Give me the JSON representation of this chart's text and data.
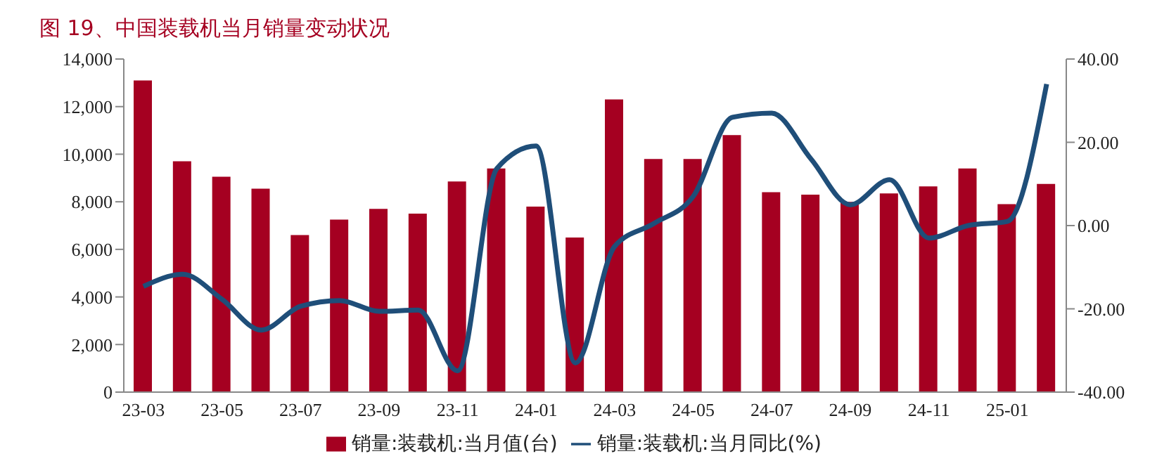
{
  "chart_data": {
    "type": "bar",
    "title": "图 19、中国装载机当月销量变动状况",
    "categories": [
      "23-03",
      null,
      "23-05",
      null,
      "23-07",
      null,
      "23-09",
      null,
      "23-11",
      null,
      "24-01",
      null,
      "24-03",
      null,
      "24-05",
      null,
      "24-07",
      null,
      "24-09",
      null,
      "24-11",
      null,
      "25-01",
      null
    ],
    "series": [
      {
        "name": "销量:装载机:当月值(台)",
        "color": "#a50021",
        "values": [
          13100,
          9700,
          9050,
          8550,
          6600,
          7250,
          7700,
          7500,
          8850,
          9400,
          7800,
          6500,
          12300,
          9800,
          9800,
          10800,
          8400,
          8300,
          8000,
          8350,
          8650,
          9400,
          7900,
          8750
        ]
      },
      {
        "name": "销量:装载机:当月同比(%)",
        "type": "line",
        "axis": "y2",
        "color": "#1f4e79",
        "values": [
          -14.6,
          -11.7,
          -17.7,
          -25.1,
          -19.4,
          -18,
          -20.6,
          -20.3,
          -34.9,
          13.7,
          19.1,
          -33,
          -5,
          0.5,
          7,
          26,
          27,
          16,
          5,
          11,
          -3,
          0,
          1,
          34
        ]
      }
    ],
    "ylim": [
      0,
      14000
    ],
    "yticks": [
      {
        "value": 0,
        "label": "0"
      },
      {
        "value": 2000,
        "label": "2,000"
      },
      {
        "value": 4000,
        "label": "4,000"
      },
      {
        "value": 6000,
        "label": "6,000"
      },
      {
        "value": 8000,
        "label": "8,000"
      },
      {
        "value": 10000,
        "label": "10,000"
      },
      {
        "value": 12000,
        "label": "12,000"
      },
      {
        "value": 14000,
        "label": "14,000"
      }
    ],
    "y2lim": [
      -40,
      40
    ],
    "y2ticks": [
      {
        "value": -40,
        "label": "-40.00"
      },
      {
        "value": -20,
        "label": "-20.00"
      },
      {
        "value": 0,
        "label": "0.00"
      },
      {
        "value": 20,
        "label": "20.00"
      },
      {
        "value": 40,
        "label": "40.00"
      }
    ],
    "grid": false,
    "legend": "bottom"
  }
}
